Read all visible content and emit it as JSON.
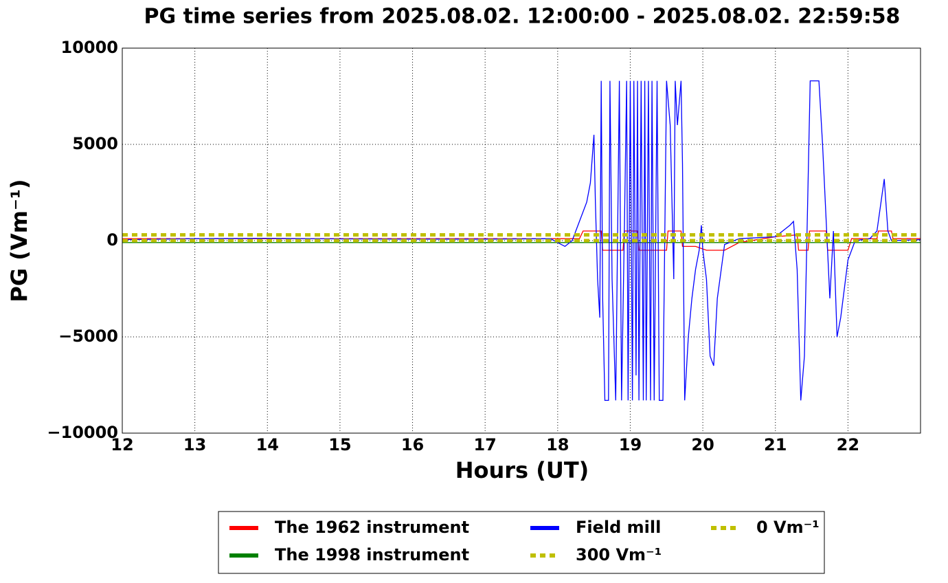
{
  "chart_data": {
    "type": "line",
    "title": "PG time series from 2025.08.02. 12:00:00 - 2025.08.02. 22:59:58",
    "x_label": "Hours (UT)",
    "y_label": "PG (Vm⁻¹)",
    "xlim": [
      12,
      23
    ],
    "xticks": [
      12,
      13,
      14,
      15,
      16,
      17,
      18,
      19,
      20,
      21,
      22
    ],
    "ylim": [
      -10000,
      10000
    ],
    "yticks": [
      {
        "value": -10000,
        "label": "−10000"
      },
      {
        "value": -5000,
        "label": "−5000"
      },
      0,
      5000,
      10000
    ],
    "grid": true,
    "legend": "bottom",
    "series": [
      {
        "name": "The 1962 instrument",
        "color": "#ff0000",
        "x": [
          12,
          18.3,
          18.35,
          18.6,
          18.62,
          18.9,
          18.92,
          19.1,
          19.12,
          19.5,
          19.52,
          19.7,
          19.72,
          19.9,
          20.05,
          20.3,
          20.5,
          21.0,
          21.3,
          21.32,
          21.45,
          21.47,
          21.7,
          21.72,
          22.0,
          22.05,
          22.4,
          22.42,
          22.6,
          22.62,
          23
        ],
        "values": [
          100,
          100,
          500,
          500,
          -500,
          -500,
          500,
          500,
          -500,
          -500,
          500,
          500,
          -300,
          -300,
          -500,
          -500,
          -100,
          200,
          300,
          -500,
          -500,
          500,
          500,
          -500,
          -500,
          100,
          100,
          500,
          500,
          100,
          100
        ]
      },
      {
        "name": "The 1998 instrument",
        "color": "#008000",
        "x": [
          12,
          23
        ],
        "values": [
          -100,
          -100
        ]
      },
      {
        "name": "Field mill",
        "color": "#0000ff",
        "x": [
          12,
          13,
          14,
          15,
          16,
          17,
          17.9,
          18.0,
          18.1,
          18.2,
          18.3,
          18.4,
          18.45,
          18.5,
          18.52,
          18.55,
          18.58,
          18.6,
          18.62,
          18.65,
          18.7,
          18.72,
          18.75,
          18.8,
          18.85,
          18.88,
          18.92,
          18.95,
          18.97,
          19.0,
          19.03,
          19.05,
          19.08,
          19.1,
          19.12,
          19.15,
          19.18,
          19.2,
          19.22,
          19.25,
          19.28,
          19.3,
          19.33,
          19.37,
          19.4,
          19.45,
          19.5,
          19.55,
          19.6,
          19.62,
          19.65,
          19.7,
          19.72,
          19.75,
          19.8,
          19.85,
          19.9,
          19.95,
          19.98,
          20.0,
          20.05,
          20.1,
          20.15,
          20.2,
          20.3,
          20.5,
          21.0,
          21.2,
          21.25,
          21.3,
          21.35,
          21.4,
          21.45,
          21.48,
          21.6,
          21.65,
          21.75,
          21.8,
          21.85,
          21.9,
          22.0,
          22.1,
          22.3,
          22.4,
          22.5,
          22.55,
          22.6,
          23.0
        ],
        "values": [
          50,
          100,
          120,
          90,
          80,
          80,
          100,
          -100,
          -300,
          0,
          1000,
          2000,
          3000,
          5500,
          2000,
          -2000,
          -4000,
          8300,
          -3000,
          -8300,
          -8300,
          8300,
          -2000,
          -8300,
          8300,
          -8300,
          800,
          8300,
          -8300,
          8300,
          -8300,
          8300,
          -7000,
          8300,
          -8300,
          8300,
          -8300,
          8300,
          -8300,
          8300,
          -8300,
          8300,
          -8300,
          8300,
          -8300,
          -8300,
          8300,
          6000,
          -2000,
          8300,
          6000,
          8300,
          4000,
          -8300,
          -5000,
          -3000,
          -1500,
          -500,
          800,
          -500,
          -2000,
          -6000,
          -6500,
          -3000,
          -200,
          100,
          200,
          800,
          1000,
          -1500,
          -8300,
          -6000,
          3000,
          8300,
          8300,
          5000,
          -3000,
          500,
          -5000,
          -4000,
          -1000,
          0,
          100,
          500,
          3200,
          500,
          0,
          50
        ]
      },
      {
        "name": "300 Vm⁻¹",
        "color": "#bfbf00",
        "dashed": true,
        "x": [
          12,
          23
        ],
        "values": [
          300,
          300
        ]
      },
      {
        "name": "0 Vm⁻¹",
        "color": "#bfbf00",
        "dashed": true,
        "x": [
          12,
          23
        ],
        "values": [
          0,
          0
        ]
      }
    ]
  }
}
